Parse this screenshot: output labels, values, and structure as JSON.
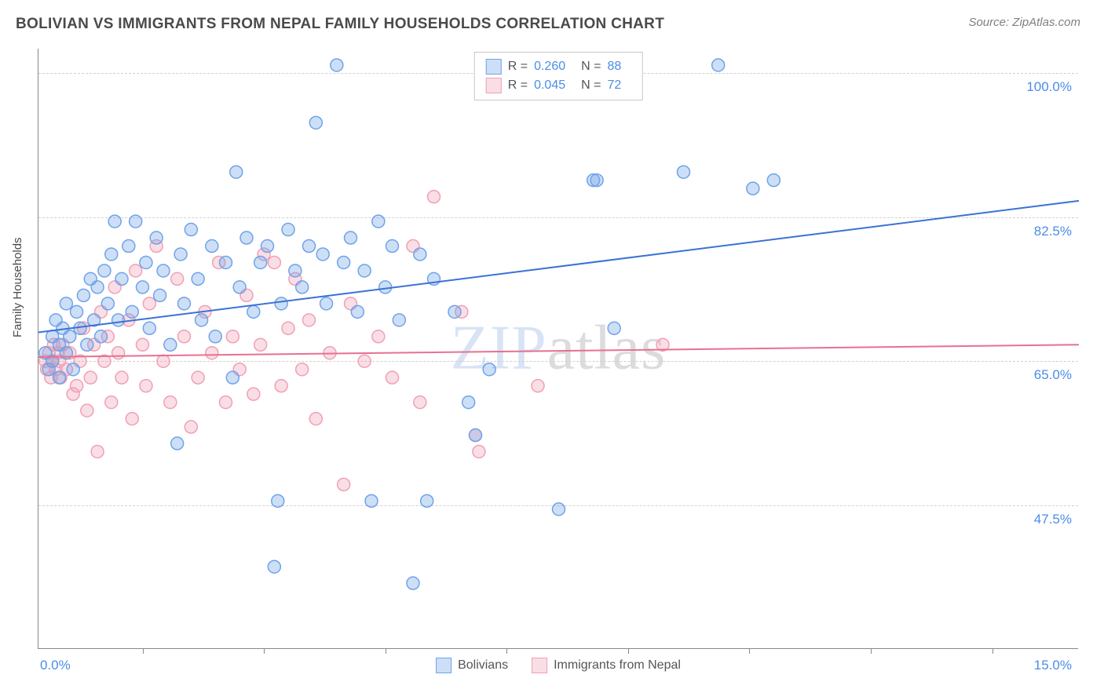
{
  "title": "BOLIVIAN VS IMMIGRANTS FROM NEPAL FAMILY HOUSEHOLDS CORRELATION CHART",
  "source_label": "Source: ZipAtlas.com",
  "y_axis_label": "Family Households",
  "watermark": {
    "part1": "ZIP",
    "part2": "atlas"
  },
  "chart": {
    "type": "scatter",
    "xlim": [
      0,
      15
    ],
    "ylim": [
      30,
      103
    ],
    "x_ticks": [
      1.5,
      3.25,
      5,
      6.75,
      8.5,
      10.25,
      12,
      13.75
    ],
    "x_tick_labels": {
      "left": "0.0%",
      "right": "15.0%"
    },
    "y_gridlines": [
      47.5,
      65.0,
      82.5,
      100.0
    ],
    "y_tick_labels": [
      "47.5%",
      "65.0%",
      "82.5%",
      "100.0%"
    ],
    "background_color": "#ffffff",
    "grid_color": "#d0d0d0",
    "marker_radius": 8,
    "marker_fill_opacity": 0.35,
    "marker_stroke_width": 1.5,
    "line_width": 2
  },
  "series": [
    {
      "name": "Bolivians",
      "color": "#6fa3e8",
      "line_color": "#3b72d4",
      "r": "0.260",
      "n": "88",
      "trend": {
        "x1": 0,
        "y1": 68.5,
        "x2": 15,
        "y2": 84.5
      },
      "points": [
        [
          0.1,
          66
        ],
        [
          0.15,
          64
        ],
        [
          0.2,
          68
        ],
        [
          0.2,
          65
        ],
        [
          0.25,
          70
        ],
        [
          0.3,
          63
        ],
        [
          0.3,
          67
        ],
        [
          0.35,
          69
        ],
        [
          0.4,
          66
        ],
        [
          0.4,
          72
        ],
        [
          0.45,
          68
        ],
        [
          0.5,
          64
        ],
        [
          0.55,
          71
        ],
        [
          0.6,
          69
        ],
        [
          0.65,
          73
        ],
        [
          0.7,
          67
        ],
        [
          0.75,
          75
        ],
        [
          0.8,
          70
        ],
        [
          0.85,
          74
        ],
        [
          0.9,
          68
        ],
        [
          0.95,
          76
        ],
        [
          1.0,
          72
        ],
        [
          1.05,
          78
        ],
        [
          1.1,
          82
        ],
        [
          1.15,
          70
        ],
        [
          1.2,
          75
        ],
        [
          1.3,
          79
        ],
        [
          1.35,
          71
        ],
        [
          1.4,
          82
        ],
        [
          1.5,
          74
        ],
        [
          1.55,
          77
        ],
        [
          1.6,
          69
        ],
        [
          1.7,
          80
        ],
        [
          1.75,
          73
        ],
        [
          1.8,
          76
        ],
        [
          1.9,
          67
        ],
        [
          2.0,
          55
        ],
        [
          2.05,
          78
        ],
        [
          2.1,
          72
        ],
        [
          2.2,
          81
        ],
        [
          2.3,
          75
        ],
        [
          2.35,
          70
        ],
        [
          2.5,
          79
        ],
        [
          2.55,
          68
        ],
        [
          2.7,
          77
        ],
        [
          2.8,
          63
        ],
        [
          2.85,
          88
        ],
        [
          2.9,
          74
        ],
        [
          3.0,
          80
        ],
        [
          3.1,
          71
        ],
        [
          3.2,
          77
        ],
        [
          3.3,
          79
        ],
        [
          3.4,
          40
        ],
        [
          3.45,
          48
        ],
        [
          3.5,
          72
        ],
        [
          3.6,
          81
        ],
        [
          3.7,
          76
        ],
        [
          3.8,
          74
        ],
        [
          3.9,
          79
        ],
        [
          4.0,
          94
        ],
        [
          4.1,
          78
        ],
        [
          4.15,
          72
        ],
        [
          4.3,
          101
        ],
        [
          4.4,
          77
        ],
        [
          4.5,
          80
        ],
        [
          4.6,
          71
        ],
        [
          4.7,
          76
        ],
        [
          4.8,
          48
        ],
        [
          4.9,
          82
        ],
        [
          5.0,
          74
        ],
        [
          5.1,
          79
        ],
        [
          5.2,
          70
        ],
        [
          5.4,
          38
        ],
        [
          5.5,
          78
        ],
        [
          5.6,
          48
        ],
        [
          5.7,
          75
        ],
        [
          6.0,
          71
        ],
        [
          6.2,
          60
        ],
        [
          6.3,
          56
        ],
        [
          6.5,
          64
        ],
        [
          7.5,
          47
        ],
        [
          8.0,
          87
        ],
        [
          8.05,
          87
        ],
        [
          8.3,
          69
        ],
        [
          9.3,
          88
        ],
        [
          9.8,
          101
        ],
        [
          10.3,
          86
        ],
        [
          10.6,
          87
        ]
      ]
    },
    {
      "name": "Immigrants from Nepal",
      "color": "#f0a0b4",
      "line_color": "#e87090",
      "r": "0.045",
      "n": "72",
      "trend": {
        "x1": 0,
        "y1": 65.5,
        "x2": 15,
        "y2": 67.0
      },
      "points": [
        [
          0.1,
          65
        ],
        [
          0.12,
          64
        ],
        [
          0.15,
          66
        ],
        [
          0.18,
          63
        ],
        [
          0.2,
          65
        ],
        [
          0.22,
          67
        ],
        [
          0.25,
          64
        ],
        [
          0.28,
          66
        ],
        [
          0.3,
          65
        ],
        [
          0.32,
          63
        ],
        [
          0.35,
          67
        ],
        [
          0.4,
          64
        ],
        [
          0.45,
          66
        ],
        [
          0.5,
          61
        ],
        [
          0.55,
          62
        ],
        [
          0.6,
          65
        ],
        [
          0.65,
          69
        ],
        [
          0.7,
          59
        ],
        [
          0.75,
          63
        ],
        [
          0.8,
          67
        ],
        [
          0.85,
          54
        ],
        [
          0.9,
          71
        ],
        [
          0.95,
          65
        ],
        [
          1.0,
          68
        ],
        [
          1.05,
          60
        ],
        [
          1.1,
          74
        ],
        [
          1.15,
          66
        ],
        [
          1.2,
          63
        ],
        [
          1.3,
          70
        ],
        [
          1.35,
          58
        ],
        [
          1.4,
          76
        ],
        [
          1.5,
          67
        ],
        [
          1.55,
          62
        ],
        [
          1.6,
          72
        ],
        [
          1.7,
          79
        ],
        [
          1.8,
          65
        ],
        [
          1.9,
          60
        ],
        [
          2.0,
          75
        ],
        [
          2.1,
          68
        ],
        [
          2.2,
          57
        ],
        [
          2.3,
          63
        ],
        [
          2.4,
          71
        ],
        [
          2.5,
          66
        ],
        [
          2.6,
          77
        ],
        [
          2.7,
          60
        ],
        [
          2.8,
          68
        ],
        [
          2.9,
          64
        ],
        [
          3.0,
          73
        ],
        [
          3.1,
          61
        ],
        [
          3.2,
          67
        ],
        [
          3.25,
          78
        ],
        [
          3.4,
          77
        ],
        [
          3.5,
          62
        ],
        [
          3.6,
          69
        ],
        [
          3.7,
          75
        ],
        [
          3.8,
          64
        ],
        [
          3.9,
          70
        ],
        [
          4.0,
          58
        ],
        [
          4.2,
          66
        ],
        [
          4.4,
          50
        ],
        [
          4.5,
          72
        ],
        [
          4.7,
          65
        ],
        [
          4.9,
          68
        ],
        [
          5.1,
          63
        ],
        [
          5.4,
          79
        ],
        [
          5.5,
          60
        ],
        [
          5.7,
          85
        ],
        [
          6.1,
          71
        ],
        [
          6.3,
          56
        ],
        [
          6.35,
          54
        ],
        [
          7.2,
          62
        ],
        [
          9.0,
          67
        ]
      ]
    }
  ],
  "legend_top": {
    "r_label": "R =",
    "n_label": "N ="
  },
  "legend_bottom_labels": [
    "Bolivians",
    "Immigrants from Nepal"
  ]
}
